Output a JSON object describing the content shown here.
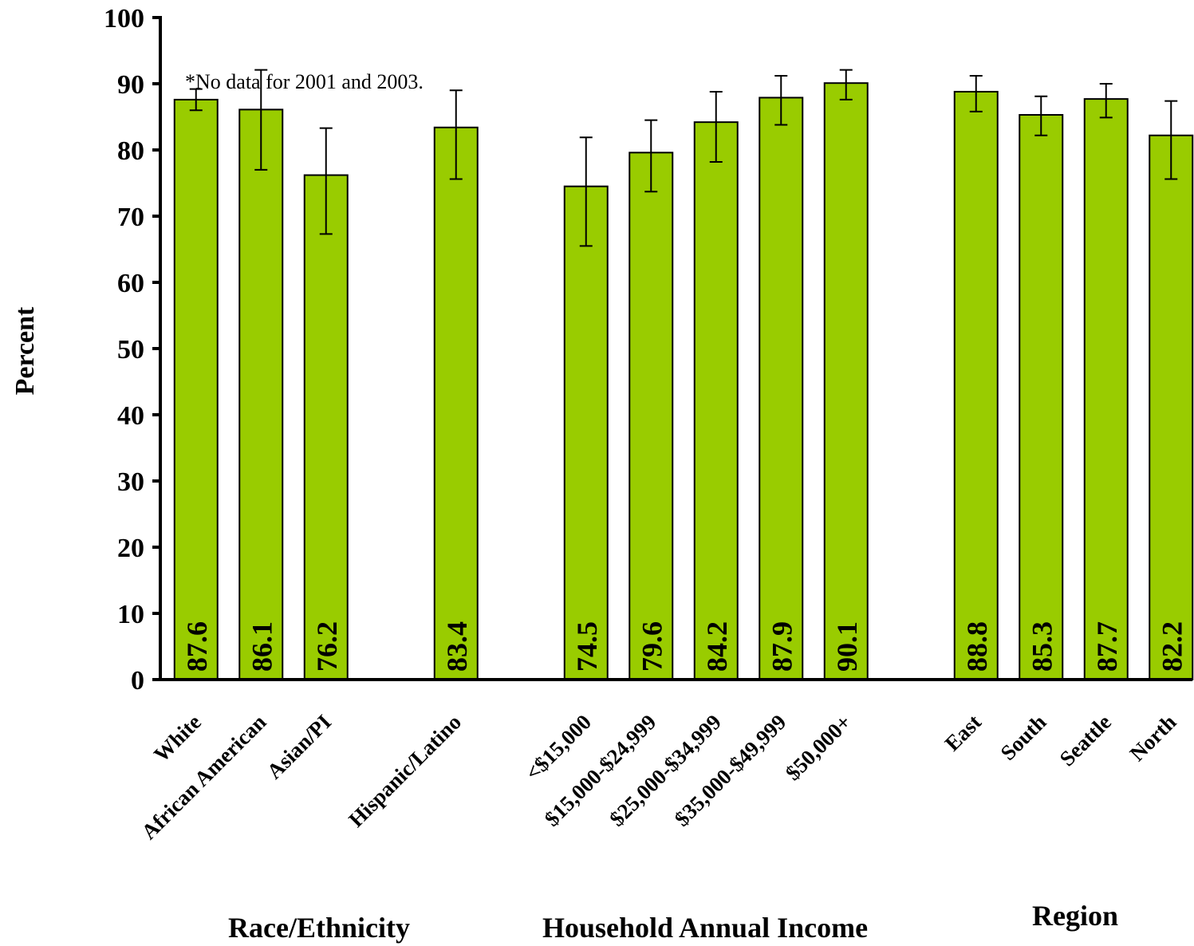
{
  "chart_data": {
    "type": "bar",
    "ylabel": "Percent",
    "ylim": [
      0,
      100
    ],
    "yticks": [
      0,
      10,
      20,
      30,
      40,
      50,
      60,
      70,
      80,
      90,
      100
    ],
    "note": "*No data for 2001 and 2003.",
    "bar_color": "#99cc00",
    "groups": [
      {
        "label": "Race/Ethnicity",
        "bars": [
          {
            "category": "White",
            "value": 87.6,
            "value_label": "87.6",
            "ci_low": 86.0,
            "ci_high": 89.2
          },
          {
            "category": "African American",
            "value": 86.1,
            "value_label": "86.1",
            "ci_low": 77.0,
            "ci_high": 92.1
          },
          {
            "category": "Asian/PI",
            "value": 76.2,
            "value_label": "76.2",
            "ci_low": 67.3,
            "ci_high": 83.3
          },
          {
            "category": "Hispanic/Latino",
            "value": 83.4,
            "value_label": "83.4",
            "ci_low": 75.6,
            "ci_high": 89.0
          }
        ]
      },
      {
        "label": "Household Annual Income",
        "bars": [
          {
            "category": "<$15,000",
            "value": 74.5,
            "value_label": "74.5",
            "ci_low": 65.5,
            "ci_high": 81.9
          },
          {
            "category": "$15,000-$24,999",
            "value": 79.6,
            "value_label": "79.6",
            "ci_low": 73.7,
            "ci_high": 84.5
          },
          {
            "category": "$25,000-$34,999",
            "value": 84.2,
            "value_label": "84.2",
            "ci_low": 78.2,
            "ci_high": 88.8
          },
          {
            "category": "$35,000-$49,999",
            "value": 87.9,
            "value_label": "87.9",
            "ci_low": 83.8,
            "ci_high": 91.2
          },
          {
            "category": "$50,000+",
            "value": 90.1,
            "value_label": "90.1",
            "ci_low": 87.6,
            "ci_high": 92.1
          }
        ]
      },
      {
        "label": "Region",
        "bars": [
          {
            "category": "East",
            "value": 88.8,
            "value_label": "88.8",
            "ci_low": 85.8,
            "ci_high": 91.2
          },
          {
            "category": "South",
            "value": 85.3,
            "value_label": "85.3",
            "ci_low": 82.2,
            "ci_high": 88.1
          },
          {
            "category": "Seattle",
            "value": 87.7,
            "value_label": "87.7",
            "ci_low": 84.9,
            "ci_high": 90.0
          },
          {
            "category": "North",
            "value": 82.2,
            "value_label": "82.2",
            "ci_low": 75.6,
            "ci_high": 87.4
          }
        ]
      }
    ]
  }
}
